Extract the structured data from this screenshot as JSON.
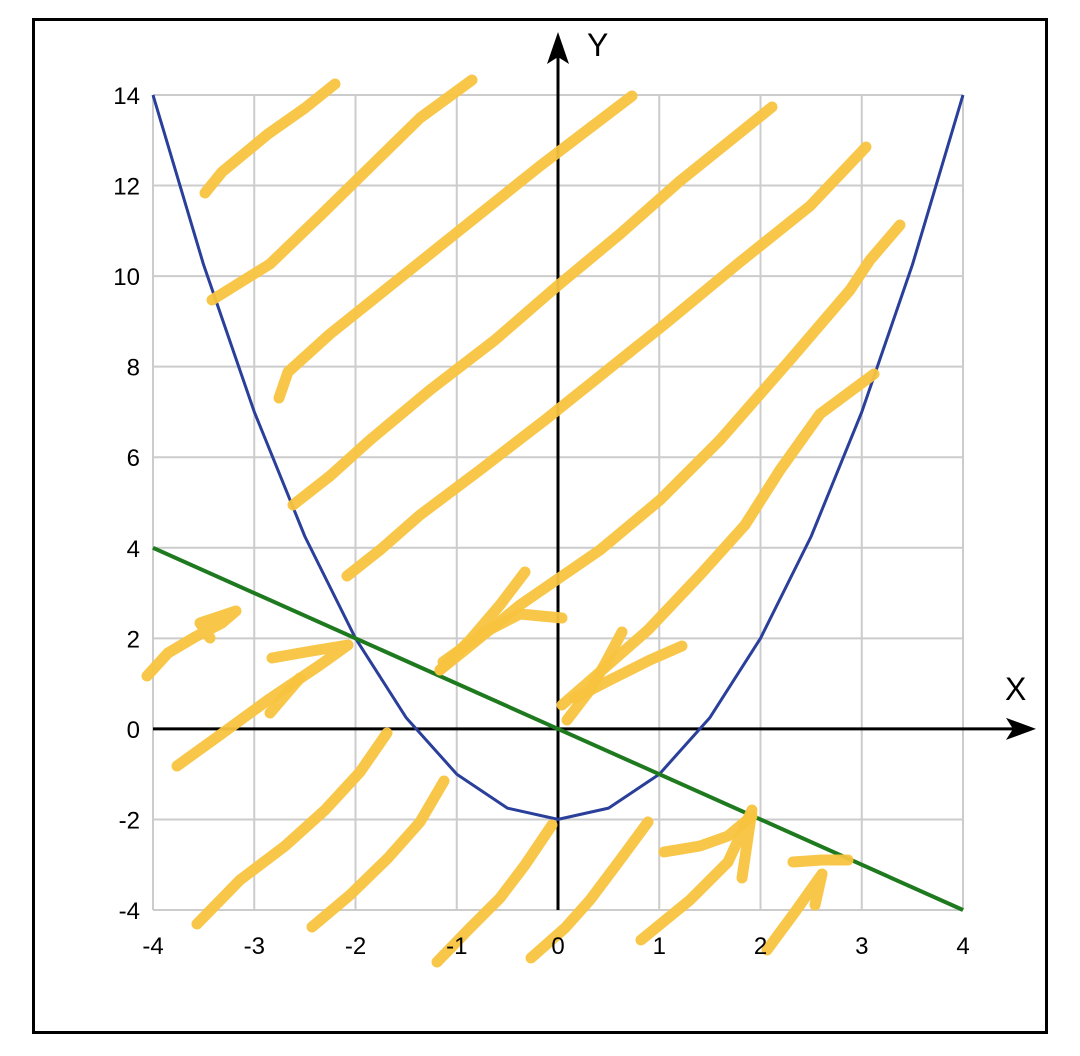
{
  "chart_data": {
    "type": "line",
    "title": "",
    "xlabel": "X",
    "ylabel": "Y",
    "xlim": [
      -4,
      4
    ],
    "ylim": [
      -4,
      14
    ],
    "grid": true,
    "x_ticks": [
      -4,
      -3,
      -2,
      -1,
      0,
      1,
      2,
      3,
      4
    ],
    "x_tick_labels": [
      "-4",
      "-3",
      "-2",
      "-1",
      "0",
      "1",
      "2",
      "3",
      "4"
    ],
    "y_ticks": [
      -4,
      -2,
      0,
      2,
      4,
      6,
      8,
      10,
      12,
      14
    ],
    "y_tick_labels": [
      "-4",
      "-2",
      "0",
      "2",
      "4",
      "6",
      "8",
      "10",
      "12",
      "14"
    ],
    "series": [
      {
        "color": "#2a3f9a",
        "x": [
          -4,
          -3.5,
          -3,
          -2.5,
          -2,
          -1.5,
          -1,
          -0.5,
          0,
          0.5,
          1,
          1.5,
          2,
          2.5,
          3,
          3.5,
          4
        ],
        "y": [
          14,
          10.25,
          7,
          4.25,
          2,
          0.25,
          -1,
          -1.75,
          -2,
          -1.75,
          -1,
          0.25,
          2,
          4.25,
          7,
          10.25,
          14
        ]
      },
      {
        "color": "#1f7a1f",
        "x": [
          -4,
          4
        ],
        "y": [
          4,
          -4
        ]
      }
    ],
    "intersection_points": [
      {
        "x": -2,
        "y": 2
      },
      {
        "x": 1,
        "y": -1
      }
    ],
    "annotations": {
      "type": "hand-drawn shading strokes",
      "color": "#f8c43f"
    }
  }
}
